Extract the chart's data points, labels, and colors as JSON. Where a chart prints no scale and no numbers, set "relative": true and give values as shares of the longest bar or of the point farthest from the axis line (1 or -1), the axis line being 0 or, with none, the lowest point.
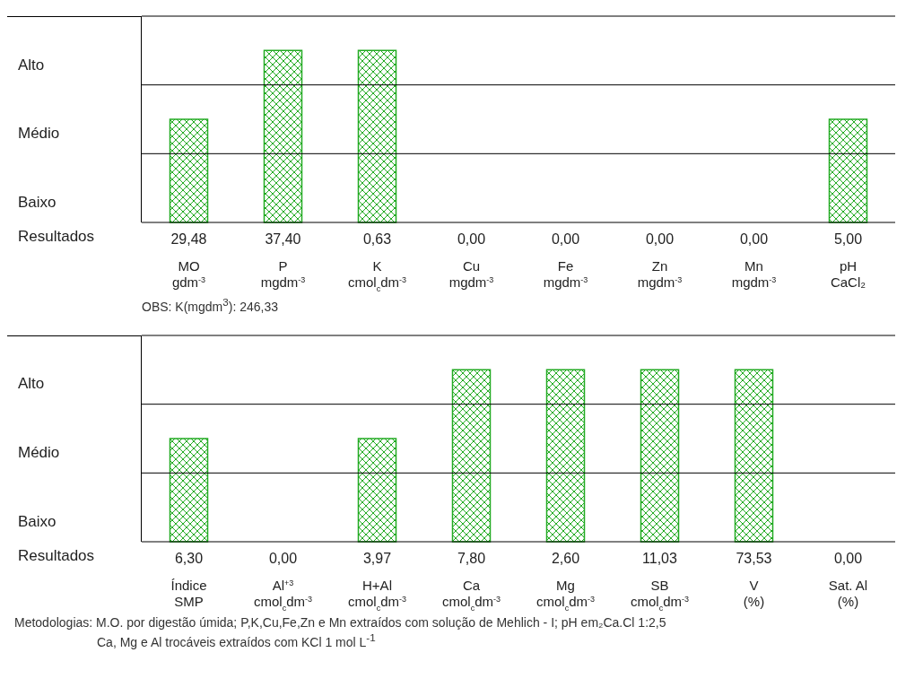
{
  "chart_data": [
    {
      "type": "bar",
      "relative": true,
      "categories": [
        "MO\ngdm$^{-3}$",
        "P\nmgdm$^{-3}$",
        "K\ncmol$_{c}$dm$^{-3}$",
        "Cu\nmgdm$^{-3}$",
        "Fe\nmgdm$^{-3}$",
        "Zn\nmgdm$^{-3}$",
        "Mn\nmgdm$^{-3}$",
        "pH\nCaCl₂"
      ],
      "values": [
        0.6,
        1,
        1,
        0,
        0,
        0,
        0,
        0.6
      ],
      "color": "#22aa22",
      "ref_lines": [
        {
          "axis": "y",
          "value": 0.4,
          "color": "#000000"
        },
        {
          "axis": "y",
          "value": 0.8,
          "color": "#000000"
        }
      ],
      "annotations": [
        "Alto",
        "Médio",
        "Baixo",
        "Resultados",
        "29,48",
        "37,40",
        "0,63",
        "0,00",
        "0,00",
        "0,00",
        "0,00",
        "5,00",
        "OBS: K(mgdm$^{3}$): 246,33"
      ]
    },
    {
      "type": "bar",
      "relative": true,
      "categories": [
        "Índice\nSMP",
        "Al$^{+3}$\ncmol$_{c}$dm$^{-3}$",
        "H+Al\ncmol$_{c}$dm$^{-3}$",
        "Ca\ncmol$_{c}$dm$^{-3}$",
        "Mg\ncmol$_{c}$dm$^{-3}$",
        "SB\ncmol$_{c}$dm$^{-3}$",
        "V\n(%)",
        "Sat. Al\n(%)"
      ],
      "values": [
        0.6,
        0,
        0.6,
        1,
        1,
        1,
        1,
        0
      ],
      "color": "#22aa22",
      "ref_lines": [
        {
          "axis": "y",
          "value": 0.4,
          "color": "#000000"
        },
        {
          "axis": "y",
          "value": 0.8,
          "color": "#000000"
        }
      ],
      "annotations": [
        "Alto",
        "Médio",
        "Baixo",
        "Resultados",
        "6,30",
        "0,00",
        "3,97",
        "7,80",
        "2,60",
        "11,03",
        "73,53",
        "0,00",
        "Metodologias: M.O. por digestão úmida; P,K,Cu,Fe,Zn e Mn extraídos com solução de Mehlich - I; pH em₂Ca.Cl   1:2,5",
        "Ca, Mg e Al trocáveis extraídos com KCl 1 mol L$^{-1}$"
      ]
    }
  ]
}
